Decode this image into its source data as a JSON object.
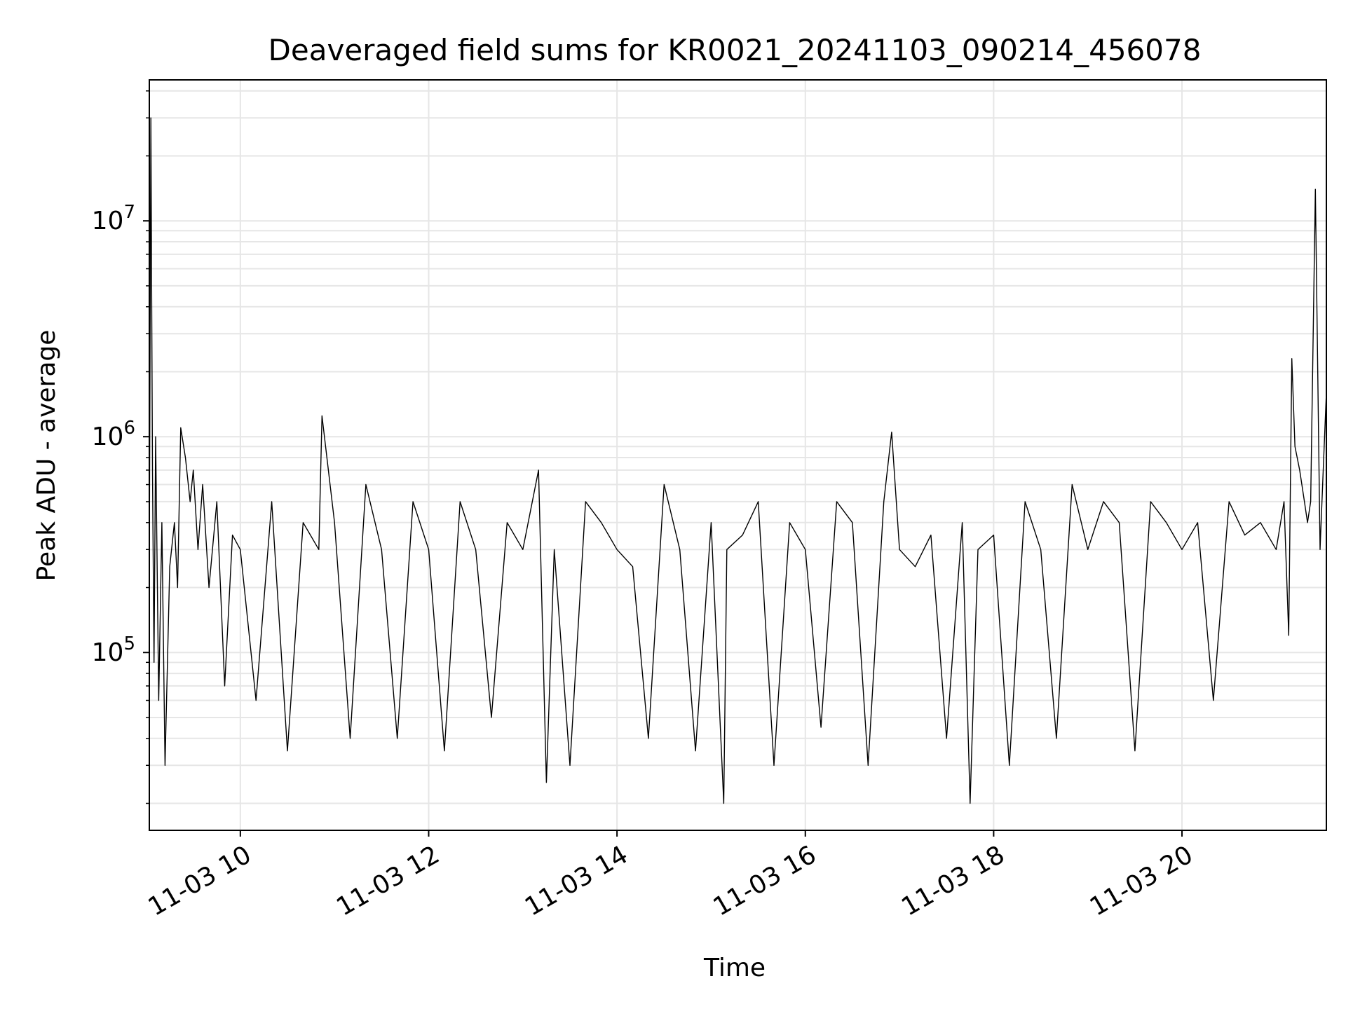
{
  "chart_data": {
    "type": "line",
    "title": "Deaveraged field sums for KR0021_20241103_090214_456078",
    "xlabel": "Time",
    "ylabel": "Peak ADU - average",
    "yscale": "log",
    "ylim": [
      15000,
      45000000
    ],
    "xlim": [
      "2024-11-03 09:02",
      "2024-11-03 21:32"
    ],
    "grid": true,
    "line_color": "#000000",
    "grid_color": "#e6e6e6",
    "x_ticks": [
      {
        "value": "2024-11-03 10:00",
        "label": "11-03 10"
      },
      {
        "value": "2024-11-03 12:00",
        "label": "11-03 12"
      },
      {
        "value": "2024-11-03 14:00",
        "label": "11-03 14"
      },
      {
        "value": "2024-11-03 16:00",
        "label": "11-03 16"
      },
      {
        "value": "2024-11-03 18:00",
        "label": "11-03 18"
      },
      {
        "value": "2024-11-03 20:00",
        "label": "11-03 20"
      }
    ],
    "y_ticks": [
      {
        "value": 100000,
        "base": "10",
        "exp": "5"
      },
      {
        "value": 1000000,
        "base": "10",
        "exp": "6"
      },
      {
        "value": 10000000,
        "base": "10",
        "exp": "7"
      }
    ],
    "series": [
      {
        "x": [
          "2024-11-03 09:02",
          "2024-11-03 09:03",
          "2024-11-03 09:04",
          "2024-11-03 09:05",
          "2024-11-03 09:06",
          "2024-11-03 09:08",
          "2024-11-03 09:10",
          "2024-11-03 09:12",
          "2024-11-03 09:15",
          "2024-11-03 09:18",
          "2024-11-03 09:20",
          "2024-11-03 09:22",
          "2024-11-03 09:25",
          "2024-11-03 09:28",
          "2024-11-03 09:30",
          "2024-11-03 09:33",
          "2024-11-03 09:36",
          "2024-11-03 09:40",
          "2024-11-03 09:45",
          "2024-11-03 09:50",
          "2024-11-03 09:55",
          "2024-11-03 10:00",
          "2024-11-03 10:10",
          "2024-11-03 10:20",
          "2024-11-03 10:30",
          "2024-11-03 10:40",
          "2024-11-03 10:50",
          "2024-11-03 10:52",
          "2024-11-03 11:00",
          "2024-11-03 11:10",
          "2024-11-03 11:20",
          "2024-11-03 11:30",
          "2024-11-03 11:40",
          "2024-11-03 11:50",
          "2024-11-03 12:00",
          "2024-11-03 12:10",
          "2024-11-03 12:20",
          "2024-11-03 12:30",
          "2024-11-03 12:40",
          "2024-11-03 12:50",
          "2024-11-03 13:00",
          "2024-11-03 13:10",
          "2024-11-03 13:15",
          "2024-11-03 13:20",
          "2024-11-03 13:30",
          "2024-11-03 13:40",
          "2024-11-03 13:50",
          "2024-11-03 14:00",
          "2024-11-03 14:10",
          "2024-11-03 14:20",
          "2024-11-03 14:30",
          "2024-11-03 14:40",
          "2024-11-03 14:50",
          "2024-11-03 15:00",
          "2024-11-03 15:08",
          "2024-11-03 15:10",
          "2024-11-03 15:20",
          "2024-11-03 15:30",
          "2024-11-03 15:40",
          "2024-11-03 15:50",
          "2024-11-03 16:00",
          "2024-11-03 16:10",
          "2024-11-03 16:20",
          "2024-11-03 16:30",
          "2024-11-03 16:40",
          "2024-11-03 16:50",
          "2024-11-03 16:55",
          "2024-11-03 17:00",
          "2024-11-03 17:10",
          "2024-11-03 17:20",
          "2024-11-03 17:30",
          "2024-11-03 17:40",
          "2024-11-03 17:45",
          "2024-11-03 17:50",
          "2024-11-03 18:00",
          "2024-11-03 18:10",
          "2024-11-03 18:20",
          "2024-11-03 18:30",
          "2024-11-03 18:40",
          "2024-11-03 18:50",
          "2024-11-03 19:00",
          "2024-11-03 19:10",
          "2024-11-03 19:20",
          "2024-11-03 19:30",
          "2024-11-03 19:40",
          "2024-11-03 19:50",
          "2024-11-03 20:00",
          "2024-11-03 20:10",
          "2024-11-03 20:20",
          "2024-11-03 20:30",
          "2024-11-03 20:40",
          "2024-11-03 20:50",
          "2024-11-03 21:00",
          "2024-11-03 21:05",
          "2024-11-03 21:08",
          "2024-11-03 21:10",
          "2024-11-03 21:12",
          "2024-11-03 21:15",
          "2024-11-03 21:18",
          "2024-11-03 21:20",
          "2024-11-03 21:22",
          "2024-11-03 21:25",
          "2024-11-03 21:28",
          "2024-11-03 21:30",
          "2024-11-03 21:32"
        ],
        "y": [
          250000,
          30000000,
          700000,
          90000,
          1000000,
          60000,
          400000,
          30000,
          250000,
          400000,
          200000,
          1100000,
          800000,
          500000,
          700000,
          300000,
          600000,
          200000,
          500000,
          70000,
          350000,
          300000,
          60000,
          500000,
          35000,
          400000,
          300000,
          1250000,
          400000,
          40000,
          600000,
          300000,
          40000,
          500000,
          300000,
          35000,
          500000,
          300000,
          50000,
          400000,
          300000,
          700000,
          25000,
          300000,
          30000,
          500000,
          400000,
          300000,
          250000,
          40000,
          600000,
          300000,
          35000,
          400000,
          20000,
          300000,
          350000,
          500000,
          30000,
          400000,
          300000,
          45000,
          500000,
          400000,
          30000,
          500000,
          1050000,
          300000,
          250000,
          350000,
          40000,
          400000,
          20000,
          300000,
          350000,
          30000,
          500000,
          300000,
          40000,
          600000,
          300000,
          500000,
          400000,
          35000,
          500000,
          400000,
          300000,
          400000,
          60000,
          500000,
          350000,
          400000,
          300000,
          500000,
          120000,
          2300000,
          900000,
          700000,
          500000,
          400000,
          500000,
          14000000,
          300000,
          700000,
          1600000
        ]
      }
    ]
  }
}
